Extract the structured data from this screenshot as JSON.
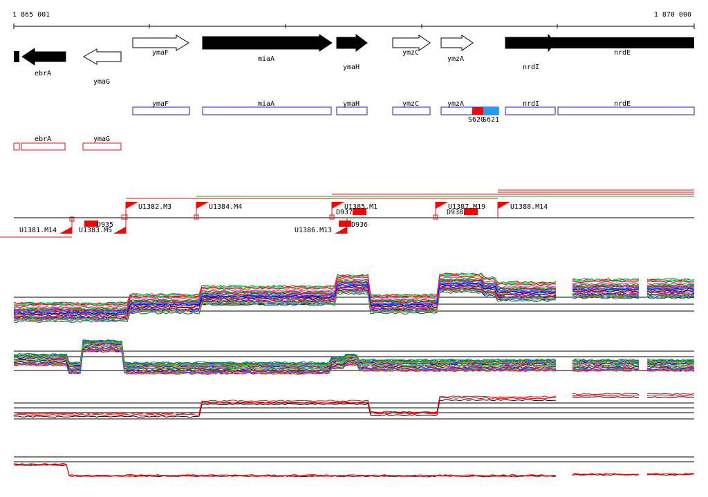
{
  "coords": {
    "start": "1 865 001",
    "end": "1 870 000"
  },
  "colors": {
    "gene_fill": "#000000",
    "cds_outline": "#1a1ab4",
    "rna_outline": "#e01010",
    "red": "#ff0000",
    "blue": "#1a9ff0"
  },
  "genes": [
    {
      "name": "ebrA",
      "strand": "-",
      "filled": true
    },
    {
      "name": "ymaG",
      "strand": "-",
      "filled": false
    },
    {
      "name": "ymaF",
      "strand": "+",
      "filled": false
    },
    {
      "name": "miaA",
      "strand": "+",
      "filled": true
    },
    {
      "name": "ymaH",
      "strand": "+",
      "filled": true
    },
    {
      "name": "ymzC",
      "strand": "+",
      "filled": false
    },
    {
      "name": "ymzA",
      "strand": "+",
      "filled": false
    },
    {
      "name": "nrdI",
      "strand": "+",
      "filled": true
    },
    {
      "name": "nrdE",
      "strand": "+",
      "filled": true
    }
  ],
  "cds_row": [
    "ymaF",
    "miaA",
    "ymaH",
    "ymzC",
    "ymzA",
    "nrdI",
    "nrdE"
  ],
  "cds_marker_labels": [
    "S620",
    "S621"
  ],
  "rna_row": [
    "ebrA",
    "ymaG"
  ],
  "segments": [
    "U1382.M3",
    "U1384.M4",
    "U1385.M1",
    "U1387.M19",
    "U1388.M14",
    "U1381.M14",
    "U1383.M5",
    "U1386.M13"
  ],
  "d_labels": [
    "D935",
    "D937",
    "D936",
    "D938"
  ]
}
